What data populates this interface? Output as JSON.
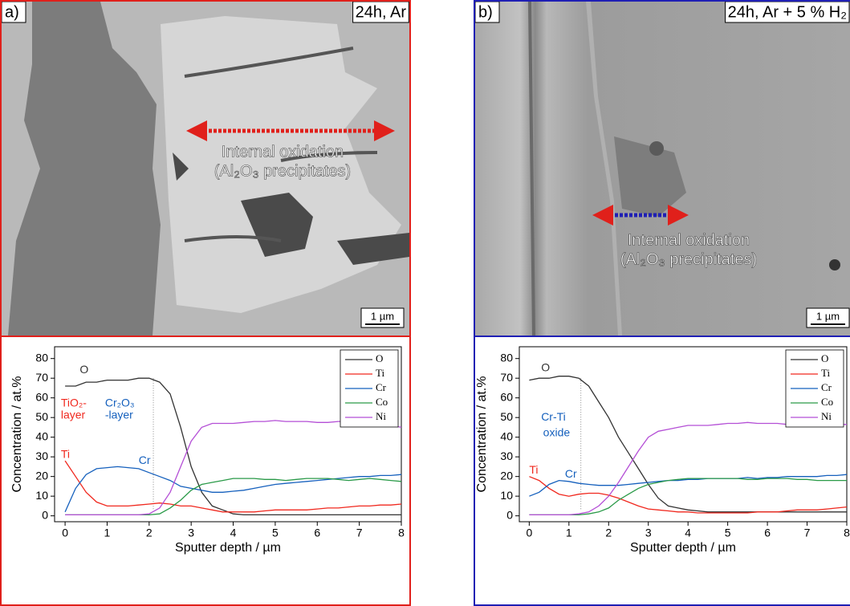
{
  "panels": [
    {
      "label": "a)",
      "condition": "24h, Ar",
      "annotation": [
        "Internal oxidation",
        "(Al₂O₃ precipitates)"
      ],
      "scale_bar": "1 µm",
      "color": "#e0201b"
    },
    {
      "label": "b)",
      "condition": "24h, Ar + 5 % H₂",
      "annotation": [
        "Internal oxidation",
        "(Al₂O₃ precipitates)"
      ],
      "scale_bar": "1 µm",
      "color": "#1f1fb4"
    }
  ],
  "chart_data": [
    {
      "type": "line",
      "xlabel": "Sputter depth / µm",
      "ylabel": "Concentration / at.%",
      "x": [
        0,
        0.25,
        0.5,
        0.75,
        1,
        1.25,
        1.5,
        1.75,
        2,
        2.25,
        2.5,
        2.75,
        3,
        3.25,
        3.5,
        3.75,
        4,
        4.25,
        4.5,
        4.75,
        5,
        5.25,
        5.5,
        5.75,
        6,
        6.25,
        6.5,
        6.75,
        7,
        7.25,
        7.5,
        7.75,
        8
      ],
      "xlim": [
        -0.25,
        8
      ],
      "ylim": [
        -3,
        86
      ],
      "xticks": [
        0,
        1,
        2,
        3,
        4,
        5,
        6,
        7,
        8
      ],
      "yticks": [
        0,
        10,
        20,
        30,
        40,
        50,
        60,
        70,
        80
      ],
      "legend": "upper right",
      "vline": 2.1,
      "series": [
        {
          "name": "O",
          "color": "#333333",
          "values": [
            66,
            66,
            68,
            68,
            69,
            69,
            69,
            70,
            70,
            68,
            62,
            45,
            25,
            12,
            5,
            3,
            1,
            0.5,
            0.5,
            0.5,
            0.5,
            0.5,
            0.5,
            0.5,
            0.5,
            0.5,
            0.5,
            0.5,
            0.5,
            0.5,
            0.5,
            0.5,
            0.5
          ]
        },
        {
          "name": "Ti",
          "color": "#f0281e",
          "values": [
            28,
            20,
            12,
            7,
            5,
            5,
            5,
            5.5,
            6,
            6.5,
            6,
            5,
            5,
            4,
            3,
            2,
            2,
            2,
            2,
            2.5,
            3,
            3,
            3,
            3,
            3.5,
            4,
            4,
            4.5,
            5,
            5,
            5.5,
            5.5,
            6
          ]
        },
        {
          "name": "Cr",
          "color": "#1560bd",
          "values": [
            2,
            14,
            21,
            24,
            24.5,
            25,
            24.5,
            24,
            22,
            20,
            18,
            15,
            14,
            13,
            12,
            12,
            12.5,
            13,
            14,
            15,
            16,
            16.5,
            17,
            17.5,
            18,
            18.5,
            19,
            19.5,
            20,
            20,
            20.5,
            20.5,
            21
          ]
        },
        {
          "name": "Co",
          "color": "#2a9a48",
          "values": [
            0.5,
            0.5,
            0.5,
            0.5,
            0.5,
            0.5,
            0.5,
            0.5,
            0.5,
            1,
            4,
            8,
            13,
            16,
            17,
            18,
            19,
            19,
            19,
            18.5,
            18.5,
            18,
            18.5,
            19,
            19,
            19,
            18.5,
            18,
            18.5,
            19,
            18.5,
            18,
            17.5
          ]
        },
        {
          "name": "Ni",
          "color": "#b44fd6",
          "values": [
            0.5,
            0.5,
            0.5,
            0.5,
            0.5,
            0.5,
            0.5,
            0.5,
            1,
            4,
            12,
            25,
            38,
            45,
            47,
            47,
            47,
            47.5,
            48,
            48,
            48.5,
            48,
            48,
            48,
            47.5,
            47.5,
            48,
            48,
            47.5,
            47,
            47,
            46,
            45
          ]
        }
      ],
      "annotations": [
        {
          "text": "O",
          "color": "#333333"
        },
        {
          "text": "TiO₂-",
          "color": "#f0281e"
        },
        {
          "text": "layer",
          "color": "#f0281e"
        },
        {
          "text": "Cr₂O₃",
          "color": "#1560bd"
        },
        {
          "text": "-layer",
          "color": "#1560bd"
        },
        {
          "text": "Ti",
          "color": "#f0281e"
        },
        {
          "text": "Cr",
          "color": "#1560bd"
        }
      ]
    },
    {
      "type": "line",
      "xlabel": "Sputter depth / µm",
      "ylabel": "Concentration / at.%",
      "x": [
        0,
        0.25,
        0.5,
        0.75,
        1,
        1.25,
        1.5,
        1.75,
        2,
        2.25,
        2.5,
        2.75,
        3,
        3.25,
        3.5,
        3.75,
        4,
        4.25,
        4.5,
        4.75,
        5,
        5.25,
        5.5,
        5.75,
        6,
        6.25,
        6.5,
        6.75,
        7,
        7.25,
        7.5,
        7.75,
        8
      ],
      "xlim": [
        -0.25,
        8
      ],
      "ylim": [
        -3,
        86
      ],
      "xticks": [
        0,
        1,
        2,
        3,
        4,
        5,
        6,
        7,
        8
      ],
      "yticks": [
        0,
        10,
        20,
        30,
        40,
        50,
        60,
        70,
        80
      ],
      "legend": "upper right",
      "vline": 1.3,
      "series": [
        {
          "name": "O",
          "color": "#333333",
          "values": [
            69,
            70,
            70,
            71,
            71,
            70,
            66,
            58,
            50,
            40,
            32,
            24,
            16,
            9,
            5,
            4,
            3,
            2.5,
            2,
            2,
            2,
            2,
            2,
            2,
            2,
            2,
            2,
            2,
            2,
            2,
            2,
            2,
            2
          ]
        },
        {
          "name": "Ti",
          "color": "#f0281e",
          "values": [
            20,
            18,
            14,
            11,
            10,
            11,
            11.5,
            11.5,
            10.5,
            9,
            7,
            5,
            3.5,
            3,
            2.5,
            2,
            2,
            1.5,
            1.5,
            1.5,
            1.5,
            1.5,
            1.5,
            2,
            2,
            2,
            2.5,
            3,
            3,
            3,
            3.5,
            4,
            4.5
          ]
        },
        {
          "name": "Cr",
          "color": "#1560bd",
          "values": [
            10,
            12,
            16,
            18,
            17.5,
            16.5,
            16,
            15.5,
            15.5,
            15.5,
            16,
            16.5,
            17,
            17.5,
            18,
            18,
            18.5,
            18.5,
            19,
            19,
            19,
            19,
            19.5,
            19,
            19.5,
            19.5,
            20,
            20,
            20,
            20,
            20.5,
            20.5,
            21
          ]
        },
        {
          "name": "Co",
          "color": "#2a9a48",
          "values": [
            0.5,
            0.5,
            0.5,
            0.5,
            0.5,
            0.5,
            1,
            2,
            4,
            8,
            11,
            14,
            16,
            17,
            18,
            18.5,
            19,
            19,
            19,
            19,
            19,
            19,
            18.5,
            18.5,
            19,
            19,
            19,
            18.5,
            18.5,
            18,
            18,
            18,
            18
          ]
        },
        {
          "name": "Ni",
          "color": "#b44fd6",
          "values": [
            0.5,
            0.5,
            0.5,
            0.5,
            0.5,
            1,
            2,
            5,
            10,
            17,
            25,
            33,
            40,
            43,
            44,
            45,
            46,
            46,
            46,
            46.5,
            47,
            47,
            47.5,
            47,
            47,
            47,
            46.5,
            47,
            47,
            47,
            46.5,
            46.5,
            46.5
          ]
        }
      ],
      "annotations": [
        {
          "text": "O",
          "color": "#333333"
        },
        {
          "text": "Cr-Ti",
          "color": "#1560bd"
        },
        {
          "text": "oxide",
          "color": "#1560bd"
        },
        {
          "text": "Ti",
          "color": "#f0281e"
        },
        {
          "text": "Cr",
          "color": "#1560bd"
        }
      ]
    }
  ]
}
